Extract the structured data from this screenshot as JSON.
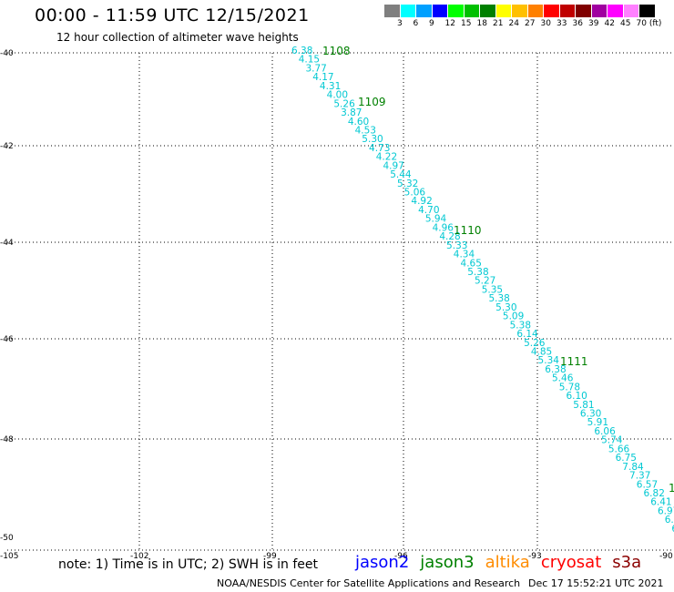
{
  "header": {
    "title": "00:00 - 11:59 UTC 12/15/2021",
    "subtitle": "12 hour collection of altimeter wave heights"
  },
  "colorbar": {
    "colors": [
      "#7f7f7f",
      "#00ffff",
      "#00a0ff",
      "#0000ff",
      "#00ff00",
      "#00c000",
      "#008000",
      "#ffff00",
      "#ffc000",
      "#ff8000",
      "#ff0000",
      "#c00000",
      "#800000",
      "#a000a0",
      "#ff00ff",
      "#ff80ff",
      "#000000"
    ],
    "labels": [
      "3",
      "6",
      "9",
      "12",
      "15",
      "18",
      "21",
      "24",
      "27",
      "30",
      "33",
      "36",
      "39",
      "42",
      "45",
      "70 (ft)"
    ]
  },
  "axes": {
    "lat_ticks": [
      "-40",
      "-42",
      "-44",
      "-46",
      "-48",
      "-50"
    ],
    "lon_ticks": [
      "-105",
      "-102",
      "-99",
      "-96",
      "-93",
      "-90"
    ]
  },
  "track": {
    "color": "#00c8d2",
    "values": [
      "6.38",
      "4.15",
      "3.77",
      "4.17",
      "4.31",
      "4.00",
      "5.26",
      "3.87",
      "4.60",
      "4.53",
      "5.30",
      "4.73",
      "4.22",
      "4.97",
      "5.44",
      "5.32",
      "5.06",
      "4.92",
      "4.70",
      "5.94",
      "4.96",
      "4.28",
      "5.33",
      "4.34",
      "4.65",
      "5.38",
      "5.27",
      "5.35",
      "5.38",
      "5.30",
      "5.09",
      "5.38",
      "6.14",
      "5.26",
      "4.85",
      "5.34",
      "6.38",
      "5.46",
      "5.78",
      "6.10",
      "5.81",
      "6.30",
      "5.91",
      "6.06",
      "5.74",
      "5.66",
      "6.75",
      "7.84",
      "7.37",
      "6.57",
      "6.82",
      "6.41",
      "6.97",
      "6.9",
      "6"
    ]
  },
  "time_labels": {
    "color": "#008000",
    "labels": [
      "1108",
      "1109",
      "1110",
      "1111",
      "1"
    ]
  },
  "footer": {
    "note": "note: 1) Time is in UTC; 2) SWH is in feet",
    "legend": [
      {
        "label": "jason2",
        "color": "#0000ff"
      },
      {
        "label": "jason3",
        "color": "#008000"
      },
      {
        "label": "altika",
        "color": "#ff8c00"
      },
      {
        "label": "cryosat",
        "color": "#ff0000"
      },
      {
        "label": "s3a",
        "color": "#8b0000"
      }
    ],
    "credit": "NOAA/NESDIS Center for Satellite Applications and Research",
    "timestamp": "Dec 17 15:52:21 UTC 2021"
  }
}
